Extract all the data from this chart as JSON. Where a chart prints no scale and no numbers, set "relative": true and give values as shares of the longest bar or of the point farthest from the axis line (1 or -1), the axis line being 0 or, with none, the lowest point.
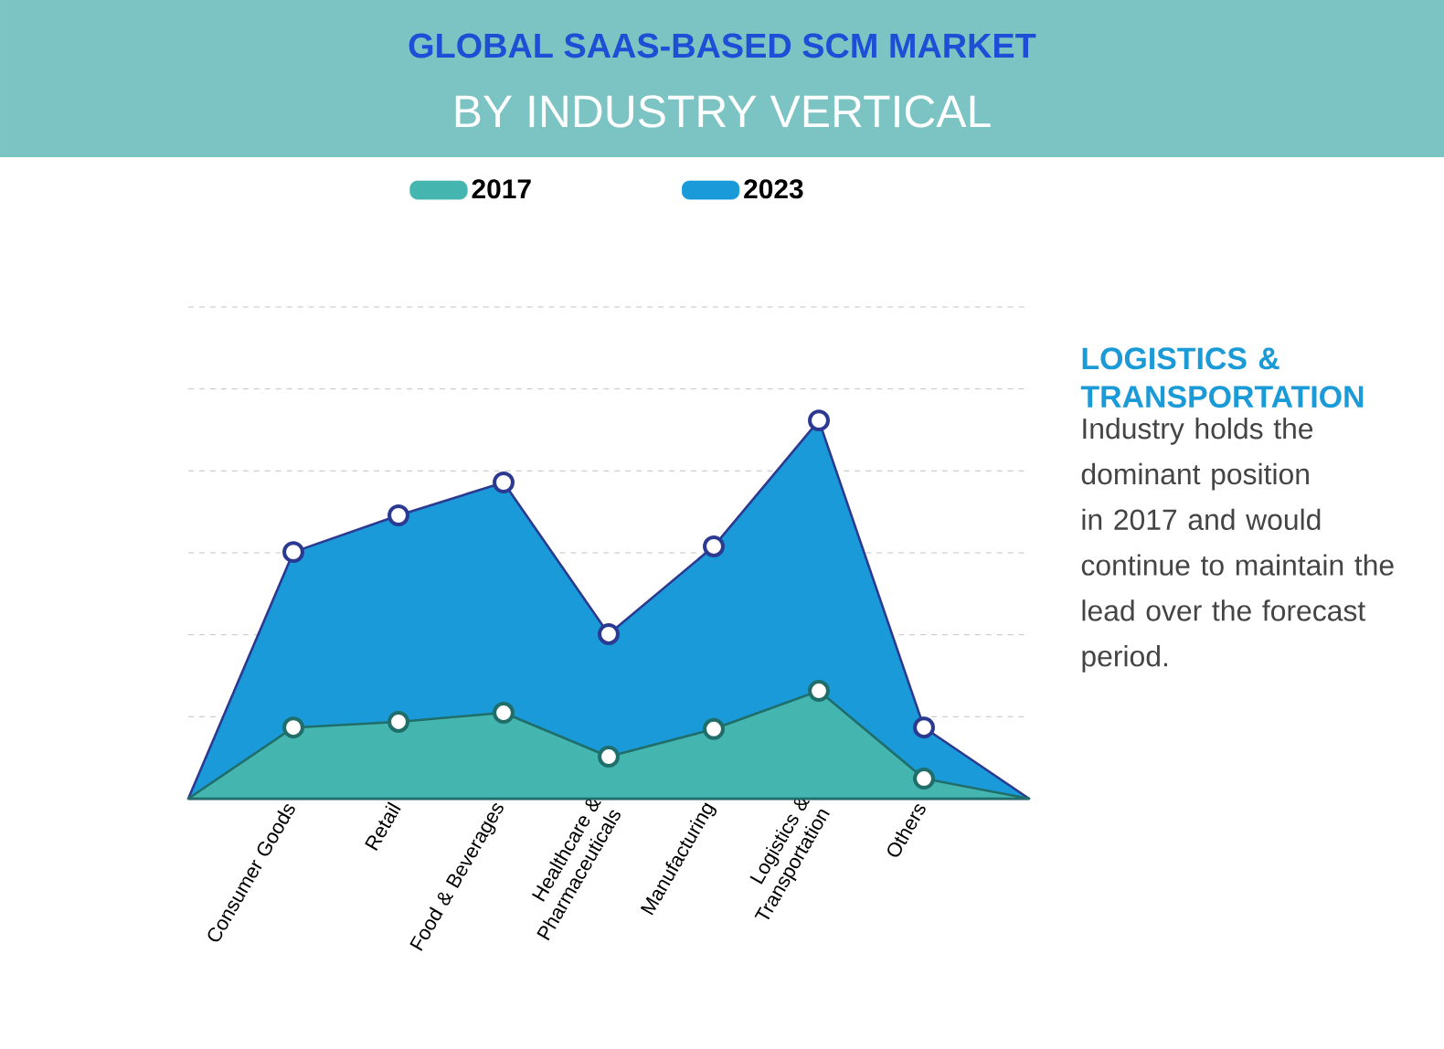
{
  "chart_data": {
    "type": "area",
    "title": "GLOBAL SAAS-BASED SCM MARKET",
    "subtitle": "BY INDUSTRY VERTICAL",
    "categories": [
      null,
      "Consumer Goods",
      "Retail",
      "Food & Beverages",
      "Healthcare & Pharmaceuticals",
      "Manufacturing",
      "Logistics & Transportation",
      "Others",
      null
    ],
    "relative": true,
    "series": [
      {
        "name": "2017",
        "color": "#45b5b0",
        "values": [
          0,
          0.188,
          0.203,
          0.227,
          0.111,
          0.184,
          0.285,
          0.053,
          0
        ]
      },
      {
        "name": "2023",
        "color": "#1a9ad8",
        "values": [
          0,
          0.652,
          0.749,
          0.836,
          0.435,
          0.667,
          1,
          0.188,
          0
        ]
      }
    ],
    "grid": "y",
    "legend": "top",
    "marker": "circle",
    "annotations": [
      "LOGISTICS & TRANSPORTATION",
      "Industry holds the dominant position in 2017 and would continue to maintain the lead over the forecast period."
    ]
  }
}
